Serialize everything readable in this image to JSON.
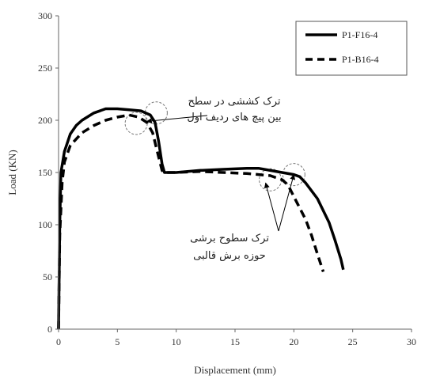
{
  "chart_data": {
    "type": "line",
    "xlabel": "Displacement (mm)",
    "ylabel": "Load (KN)",
    "xlim": [
      0,
      30
    ],
    "ylim": [
      0,
      300
    ],
    "xticks": [
      "0",
      "5",
      "10",
      "15",
      "20",
      "25",
      "30"
    ],
    "yticks": [
      "0",
      "50",
      "100",
      "150",
      "200",
      "250",
      "300"
    ],
    "grid": false,
    "legend_position": "top-right",
    "series": [
      {
        "name": "P1-F16-4",
        "color": "#000000",
        "style": "solid",
        "points": [
          [
            0.0,
            0
          ],
          [
            0.1,
            100
          ],
          [
            0.2,
            150
          ],
          [
            0.5,
            170
          ],
          [
            1.0,
            187
          ],
          [
            1.5,
            195
          ],
          [
            2.0,
            200
          ],
          [
            3.0,
            207
          ],
          [
            4.0,
            211
          ],
          [
            5.0,
            211
          ],
          [
            6.0,
            210
          ],
          [
            7.0,
            209
          ],
          [
            7.8,
            205
          ],
          [
            8.2,
            198
          ],
          [
            8.5,
            180
          ],
          [
            8.8,
            158
          ],
          [
            9.0,
            150
          ],
          [
            10.0,
            150
          ],
          [
            12.0,
            152
          ],
          [
            14.0,
            153
          ],
          [
            16.0,
            154
          ],
          [
            17.0,
            154
          ],
          [
            18.0,
            152
          ],
          [
            20.0,
            148
          ],
          [
            20.5,
            146
          ],
          [
            21.0,
            140
          ],
          [
            22.0,
            125
          ],
          [
            23.0,
            102
          ],
          [
            23.5,
            85
          ],
          [
            24.0,
            67
          ],
          [
            24.2,
            57
          ]
        ]
      },
      {
        "name": "P1-B16-4",
        "color": "#000000",
        "style": "dashed",
        "points": [
          [
            0.0,
            0
          ],
          [
            0.1,
            90
          ],
          [
            0.3,
            140
          ],
          [
            0.5,
            160
          ],
          [
            1.0,
            176
          ],
          [
            2.0,
            188
          ],
          [
            3.0,
            195
          ],
          [
            4.0,
            200
          ],
          [
            5.0,
            203
          ],
          [
            6.0,
            205
          ],
          [
            6.8,
            203
          ],
          [
            7.5,
            198
          ],
          [
            8.0,
            188
          ],
          [
            8.5,
            165
          ],
          [
            8.8,
            152
          ],
          [
            9.0,
            150
          ],
          [
            10.0,
            150
          ],
          [
            12.0,
            151
          ],
          [
            14.0,
            150
          ],
          [
            16.0,
            149
          ],
          [
            17.0,
            148
          ],
          [
            18.0,
            147
          ],
          [
            19.0,
            143
          ],
          [
            19.5,
            138
          ],
          [
            20.0,
            127
          ],
          [
            21.0,
            105
          ],
          [
            21.5,
            90
          ],
          [
            22.0,
            72
          ],
          [
            22.5,
            55
          ]
        ]
      }
    ],
    "annotations": [
      {
        "lines": [
          "ترک کششی در سطح",
          "بین پیچ های ردیف اول"
        ]
      },
      {
        "lines": [
          "ترک سطوح برشی",
          "حوزه برش قالبی"
        ]
      }
    ]
  }
}
